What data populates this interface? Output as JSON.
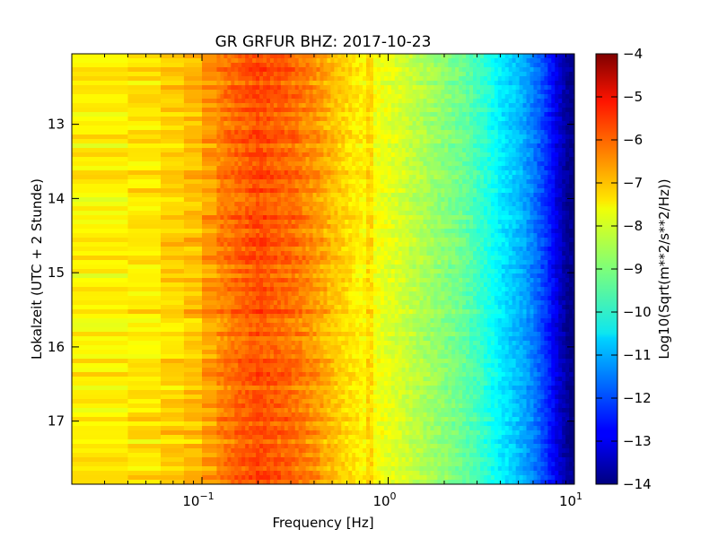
{
  "chart_data": {
    "type": "heatmap",
    "title": "GR GRFUR BHZ: 2017-10-23",
    "xlabel": "Frequency [Hz]",
    "ylabel": "Lokalzeit (UTC + 2 Stunde)",
    "x_scale": "log",
    "xlim": [
      0.02,
      10
    ],
    "ylim": [
      17.85,
      12.05
    ],
    "x_ticks": [
      {
        "value": 0.1,
        "base": "10",
        "exp": "−1"
      },
      {
        "value": 1,
        "base": "10",
        "exp": "0"
      },
      {
        "value": 10,
        "base": "10",
        "exp": "1"
      }
    ],
    "y_ticks": [
      {
        "value": 13,
        "label": "13"
      },
      {
        "value": 14,
        "label": "14"
      },
      {
        "value": 15,
        "label": "15"
      },
      {
        "value": 16,
        "label": "16"
      },
      {
        "value": 17,
        "label": "17"
      }
    ],
    "colorbar": {
      "label": "Log10(Sqrt(m**2/s**2/Hz))",
      "range": [
        -14,
        -4
      ],
      "colormap": "jet",
      "ticks": [
        "−4",
        "−5",
        "−6",
        "−7",
        "−8",
        "−9",
        "−10",
        "−11",
        "−12",
        "−13",
        "−14"
      ]
    },
    "profile": {
      "frequency_hz": [
        0.02,
        0.04,
        0.06,
        0.08,
        0.1,
        0.12,
        0.15,
        0.2,
        0.3,
        0.4,
        0.5,
        0.6,
        0.7,
        0.8,
        1.0,
        1.3,
        1.6,
        2.0,
        2.5,
        3.0,
        3.5,
        4.0,
        5.0,
        6.0,
        7.0,
        8.0,
        9.0,
        10.0
      ],
      "value": [
        -7.7,
        -7.6,
        -7.4,
        -7.2,
        -7.0,
        -6.6,
        -6.3,
        -6.0,
        -6.3,
        -6.7,
        -7.1,
        -7.4,
        -7.6,
        -7.8,
        -8.0,
        -8.3,
        -8.6,
        -8.9,
        -9.2,
        -9.6,
        -10.0,
        -10.4,
        -10.9,
        -11.5,
        -12.2,
        -13.0,
        -13.7,
        -14.0
      ]
    },
    "grid": false
  }
}
